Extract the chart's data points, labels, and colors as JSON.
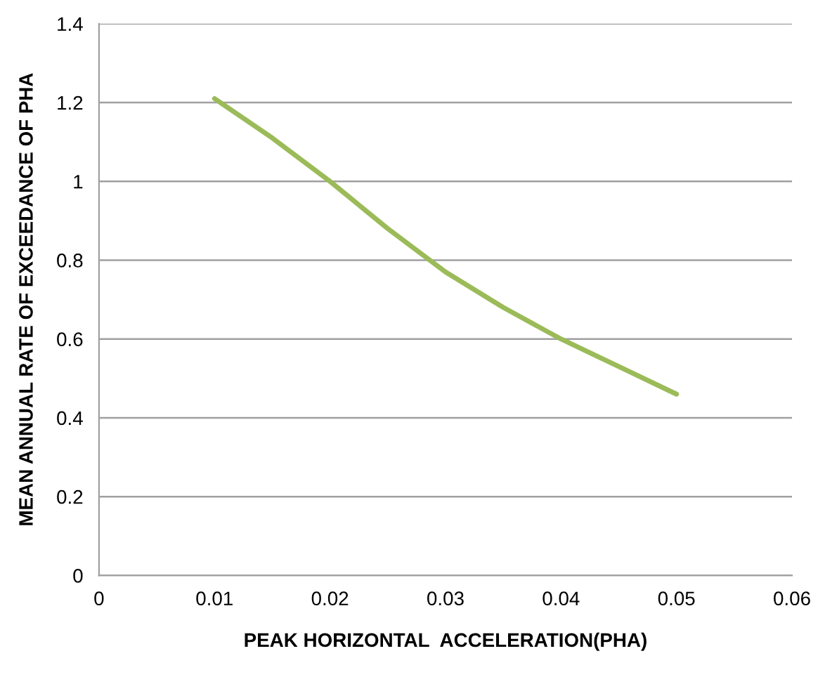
{
  "chart_data": {
    "type": "line",
    "xlabel": "PEAK HORIZONTAL  ACCELERATION(PHA)",
    "ylabel": "MEAN ANNUAL RATE OF EXCEEDANCE OF PHA",
    "x": [
      0.01,
      0.015,
      0.02,
      0.025,
      0.03,
      0.035,
      0.04,
      0.045,
      0.05
    ],
    "series": [
      {
        "color": "#9bbb59",
        "values": [
          1.21,
          1.11,
          1.0,
          0.88,
          0.77,
          0.68,
          0.6,
          0.53,
          0.46
        ]
      }
    ],
    "xlim": [
      0,
      0.06
    ],
    "xticks": [
      0,
      0.01,
      0.02,
      0.03,
      0.04,
      0.05,
      0.06
    ],
    "ylim": [
      0,
      1.4
    ],
    "yticks": [
      0,
      0.2,
      0.4,
      0.6,
      0.8,
      1,
      1.2,
      1.4
    ],
    "grid": "y",
    "marker": "none",
    "line_style": "solid"
  }
}
